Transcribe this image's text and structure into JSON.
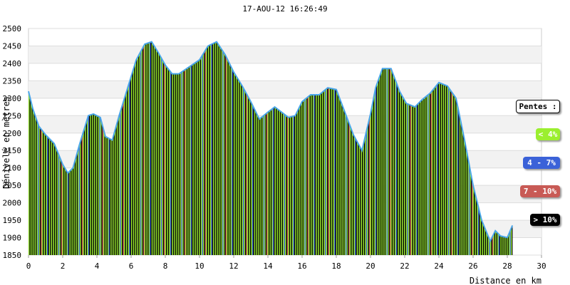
{
  "header": {
    "timestamp": "17-AOU-12 16:26:49"
  },
  "legend": {
    "title": "Pentes :",
    "items": [
      {
        "label": "< 4%",
        "color": "#9bef2f",
        "text_color": "#ffffff"
      },
      {
        "label": "4 - 7%",
        "color": "#3b62d8",
        "text_color": "#ffffff"
      },
      {
        "label": "7 - 10%",
        "color": "#c85a55",
        "text_color": "#ffffff"
      },
      {
        "label": "> 10%",
        "color": "#000000",
        "text_color": "#ffffff"
      }
    ]
  },
  "chart_data": {
    "type": "area",
    "title": "",
    "xlabel": "Distance en km",
    "ylabel": "Dénivelé en mètres",
    "xlim": [
      0,
      30
    ],
    "ylim": [
      1850,
      2500
    ],
    "x_ticks": [
      0,
      2,
      4,
      6,
      8,
      10,
      12,
      14,
      16,
      18,
      20,
      22,
      24,
      26,
      28,
      30
    ],
    "y_ticks": [
      1850,
      1900,
      1950,
      2000,
      2050,
      2100,
      2150,
      2200,
      2250,
      2300,
      2350,
      2400,
      2450,
      2500
    ],
    "grid": "horizontal bands",
    "legend_position": "right",
    "line_color": "#4aa6e8",
    "series": [
      {
        "x": [
          0,
          0.25,
          0.6,
          1.0,
          1.5,
          2.0,
          2.3,
          2.6,
          3.0,
          3.5,
          3.8,
          4.2,
          4.5,
          4.9,
          5.3,
          5.8,
          6.3,
          6.8,
          7.2,
          7.6,
          8.0,
          8.4,
          8.8,
          9.4,
          10.0,
          10.5,
          11.0,
          11.5,
          12.0,
          12.5,
          13.0,
          13.5,
          14.0,
          14.4,
          14.8,
          15.2,
          15.6,
          16.0,
          16.5,
          17.0,
          17.5,
          18.0,
          18.5,
          19.0,
          19.5,
          20.0,
          20.3,
          20.7,
          21.2,
          21.7,
          22.1,
          22.6,
          23.0,
          23.5,
          24.0,
          24.5,
          25.0,
          25.5,
          26.0,
          26.5,
          27.0,
          27.3,
          27.6,
          28.0,
          28.3
        ],
        "y": [
          2320,
          2270,
          2220,
          2195,
          2170,
          2110,
          2085,
          2100,
          2170,
          2250,
          2255,
          2245,
          2190,
          2180,
          2250,
          2330,
          2410,
          2455,
          2462,
          2430,
          2395,
          2370,
          2370,
          2390,
          2410,
          2450,
          2462,
          2425,
          2375,
          2335,
          2290,
          2240,
          2260,
          2275,
          2260,
          2245,
          2250,
          2290,
          2310,
          2310,
          2330,
          2325,
          2260,
          2195,
          2150,
          2255,
          2330,
          2385,
          2385,
          2320,
          2285,
          2275,
          2295,
          2315,
          2345,
          2335,
          2300,
          2180,
          2050,
          1950,
          1890,
          1920,
          1905,
          1900,
          1935
        ],
        "segment_slopes": [
          "< 4%",
          "> 10%",
          "< 4%",
          "> 10%",
          "< 4%",
          "> 10%",
          "< 4%",
          "> 10%",
          "< 4%",
          "4 - 7%",
          "< 4%",
          "> 10%",
          "7 - 10%",
          "< 4%",
          "> 10%",
          "< 4%",
          "> 10%",
          "< 4%",
          "4 - 7%",
          "> 10%"
        ]
      }
    ]
  }
}
